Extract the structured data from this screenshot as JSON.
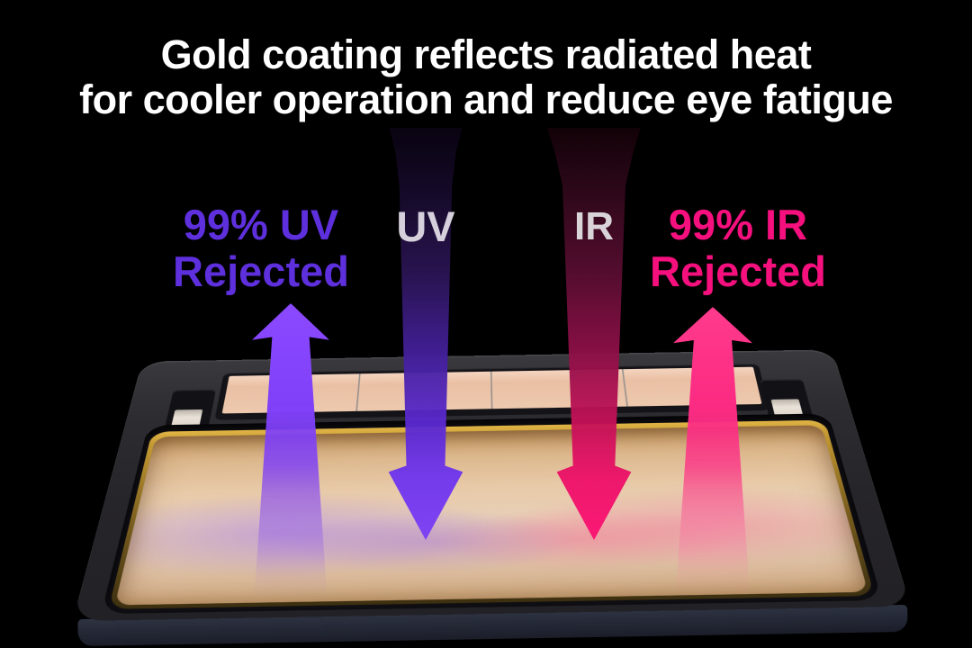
{
  "title": {
    "line1": "Gold coating reflects radiated heat",
    "line2": "for cooler operation and reduce eye fatigue"
  },
  "annotations": {
    "uv_rejected": {
      "line1": "99% UV",
      "line2": "Rejected",
      "color": "#5e30dd"
    },
    "ir_rejected": {
      "line1": "99% IR",
      "line2": "Rejected",
      "color": "#f5107e"
    },
    "uv_beam_label": {
      "text": "UV",
      "color": "#d6d0dd"
    },
    "ir_beam_label": {
      "text": "IR",
      "color": "#d8d4d8"
    }
  },
  "beams": {
    "uv_incident": {
      "top_color": "#0a0311",
      "bottom_color": "#7c3ff5",
      "direction": "down"
    },
    "ir_incident": {
      "top_color": "#130208",
      "bottom_color": "#fb1273",
      "direction": "down"
    },
    "uv_reflected": {
      "color": "#8b49ff",
      "direction": "up"
    },
    "ir_reflected": {
      "color": "#ff3a8c",
      "direction": "up"
    }
  },
  "palette": {
    "background": "#000000",
    "title_text": "#ffffff",
    "filter_frame": "#2b2a2e",
    "filter_side": "#262a38",
    "solar_panel": "#eac3a9",
    "gold_rim": "#d3a93e",
    "lens_amber": "#e8caa8"
  }
}
